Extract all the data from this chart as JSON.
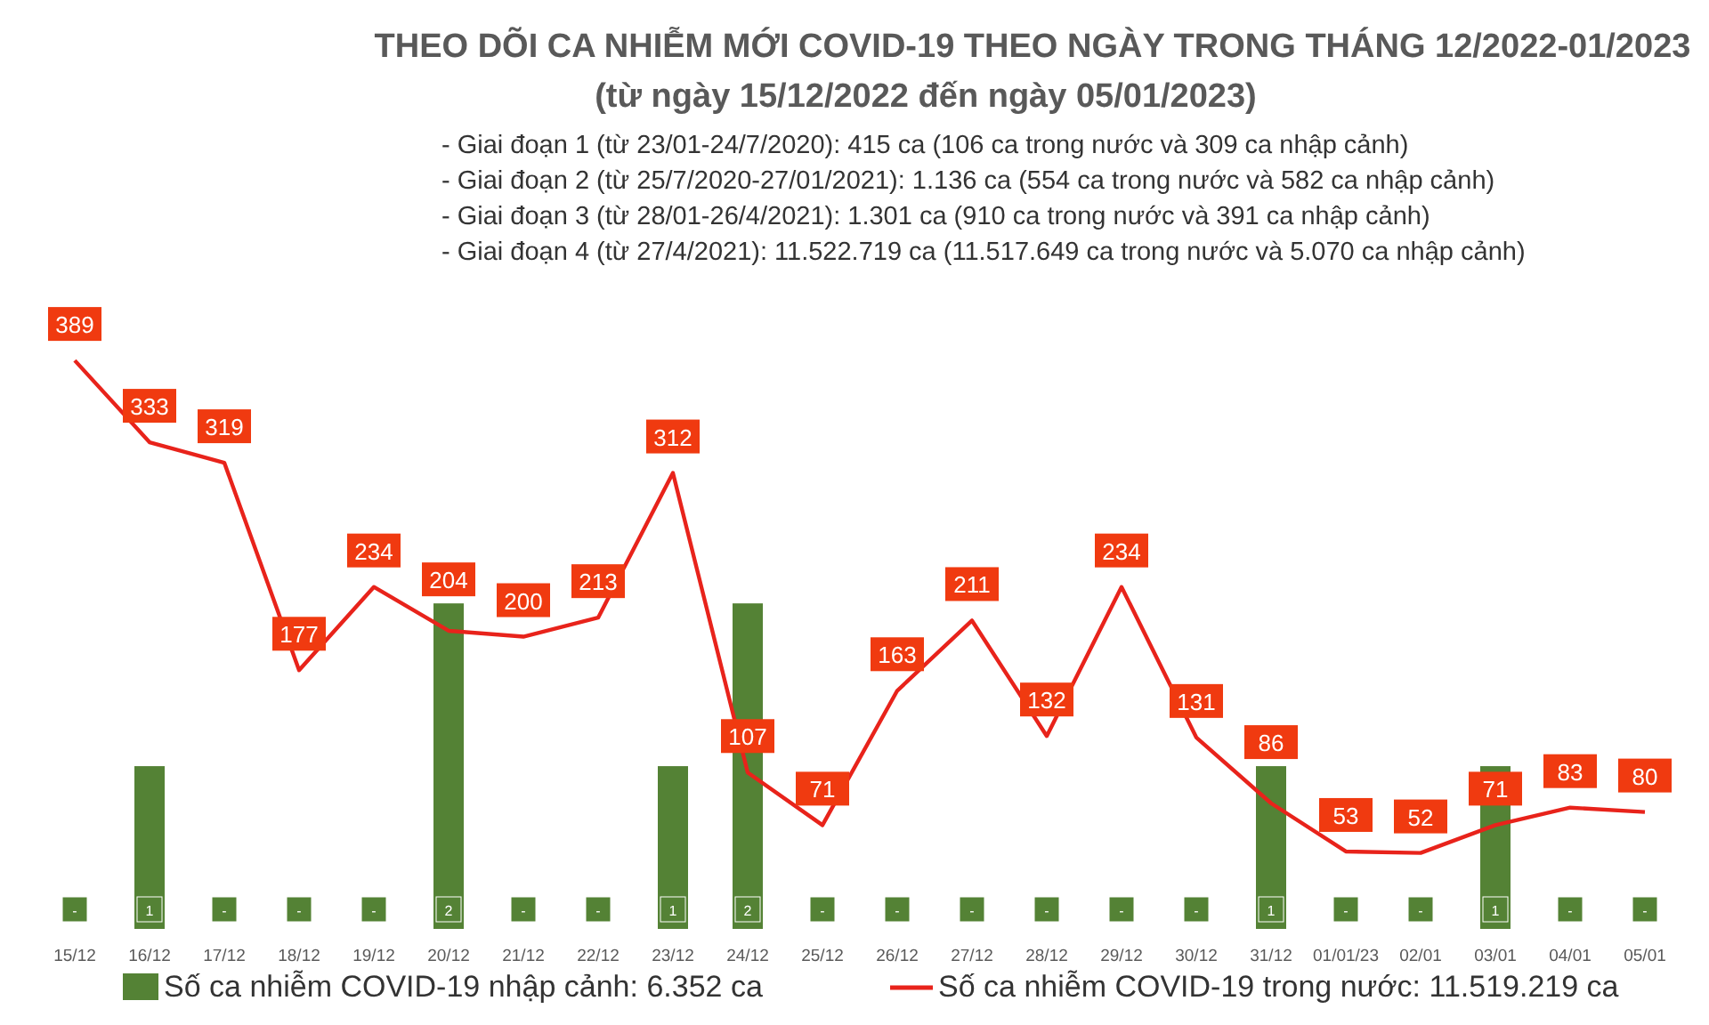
{
  "chart_data": {
    "type": "bar",
    "title": "THEO DÕI CA NHIỄM MỚI COVID-19 THEO NGÀY TRONG THÁNG 12/2022-01/2023",
    "subtitle": "(từ ngày 15/12/2022 đến ngày 05/01/2023)",
    "annotations": [
      "- Giai đoạn 1 (từ 23/01-24/7/2020): 415 ca (106 ca trong nước và 309 ca nhập cảnh)",
      "- Giai đoạn 2 (từ 25/7/2020-27/01/2021): 1.136 ca (554 ca trong nước và 582 ca nhập cảnh)",
      "- Giai đoạn 3 (từ 28/01-26/4/2021): 1.301 ca (910 ca trong nước và 391 ca nhập cảnh)",
      "- Giai đoạn 4 (từ 27/4/2021): 11.522.719 ca (11.517.649 ca trong nước và 5.070 ca nhập cảnh)"
    ],
    "categories": [
      "15/12",
      "16/12",
      "17/12",
      "18/12",
      "19/12",
      "20/12",
      "21/12",
      "22/12",
      "23/12",
      "24/12",
      "25/12",
      "26/12",
      "27/12",
      "28/12",
      "29/12",
      "30/12",
      "31/12",
      "01/01/23",
      "02/01",
      "03/01",
      "04/01",
      "05/01"
    ],
    "series": [
      {
        "name": "Số ca nhiễm COVID-19 nhập cảnh: 6.352 ca",
        "axis": "y2",
        "color": "#548235",
        "values": [
          null,
          1,
          null,
          null,
          null,
          2,
          null,
          null,
          1,
          2,
          null,
          null,
          null,
          null,
          null,
          null,
          1,
          null,
          null,
          1,
          null,
          null
        ],
        "value_labels": [
          "-",
          "1",
          "-",
          "-",
          "-",
          "2",
          "-",
          "-",
          "1",
          "2",
          "-",
          "-",
          "-",
          "-",
          "-",
          "-",
          "1",
          "-",
          "-",
          "1",
          "-",
          "-"
        ]
      },
      {
        "name": "Số ca nhiễm COVID-19 trong nước: 11.519.219 ca",
        "type": "line",
        "color": "#e8231b",
        "values": [
          389,
          333,
          319,
          177,
          234,
          204,
          200,
          213,
          312,
          107,
          71,
          163,
          211,
          132,
          234,
          131,
          86,
          53,
          52,
          71,
          83,
          80
        ],
        "value_labels": [
          "389",
          "333",
          "319",
          "177",
          "234",
          "204",
          "200",
          "213",
          "312",
          "107",
          "71",
          "163",
          "211",
          "132",
          "234",
          "131",
          "86",
          "53",
          "52",
          "71",
          "83",
          "80"
        ]
      }
    ],
    "legend": "bottom",
    "tick_labels": "x"
  }
}
